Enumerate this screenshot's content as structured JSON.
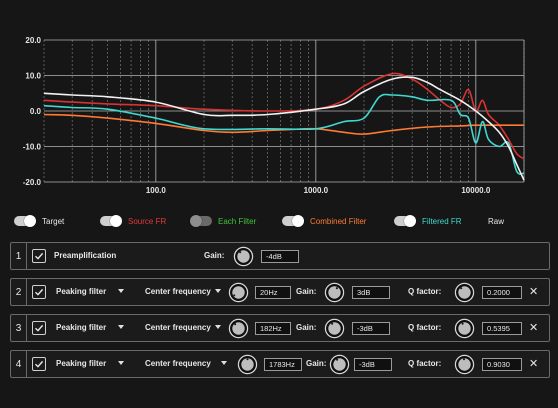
{
  "chart_data": {
    "type": "line",
    "xscale": "log",
    "xlim": [
      20,
      20000
    ],
    "ylim": [
      -20,
      20
    ],
    "grid": true,
    "y_ticks": [
      "20.0",
      "10.0",
      "0.0",
      "-10.0",
      "-20.0"
    ],
    "y_tick_values": [
      20,
      10,
      0,
      -10,
      -20
    ],
    "x_ticks": [
      "100.0",
      "1000.0",
      "10000.0"
    ],
    "x_tick_values": [
      100,
      1000,
      10000
    ],
    "series": [
      {
        "name": "Source FR",
        "color": "#d93232",
        "x": [
          20,
          30,
          50,
          100,
          200,
          500,
          1000,
          1500,
          2000,
          3000,
          4000,
          5000,
          6000,
          7000,
          8000,
          9000,
          10000,
          11000,
          12000,
          14000,
          16000,
          18000,
          20000
        ],
        "values": [
          3,
          2.5,
          2,
          1.5,
          0.5,
          0,
          0.5,
          3,
          7,
          10.5,
          9,
          6,
          3,
          1,
          2,
          6,
          0,
          3,
          -1,
          -4,
          -8,
          -12,
          -13.5
        ]
      },
      {
        "name": "Combined Filter",
        "color": "#ff7a33",
        "x": [
          20,
          30,
          50,
          100,
          200,
          300,
          500,
          700,
          1000,
          1500,
          2000,
          3000,
          5000,
          8000,
          10000,
          15000,
          20000
        ],
        "values": [
          -1,
          -1.2,
          -2,
          -3.5,
          -5.5,
          -6,
          -5.5,
          -5.2,
          -5,
          -6,
          -6.5,
          -5.5,
          -4.5,
          -4.2,
          -4,
          -4,
          -4
        ]
      },
      {
        "name": "Filtered FR",
        "color": "#3fd9d0",
        "x": [
          20,
          30,
          50,
          100,
          200,
          500,
          1000,
          1500,
          2000,
          2500,
          3000,
          4000,
          5000,
          7000,
          8000,
          9000,
          10000,
          11000,
          12000,
          14000,
          16000,
          18000,
          20000
        ],
        "values": [
          1.5,
          1,
          0.5,
          -2,
          -5,
          -5,
          -5,
          -3,
          -2,
          4,
          4.5,
          4,
          3,
          3,
          -1,
          -2,
          -9,
          -3,
          -8,
          -10,
          -9,
          -17,
          -17.5
        ]
      },
      {
        "name": "Target",
        "color": "#f2f2f2",
        "x": [
          20,
          30,
          50,
          100,
          200,
          300,
          500,
          1000,
          1500,
          2000,
          3000,
          4000,
          5000,
          6000,
          8000,
          10000,
          12000,
          14000,
          16000,
          18000,
          20000
        ],
        "values": [
          5,
          4.5,
          4,
          2.5,
          -1,
          -1.2,
          -1,
          0.5,
          2,
          5.5,
          9,
          9.5,
          8,
          6,
          3,
          0,
          -3,
          -6,
          -10,
          -15,
          -19.5
        ]
      }
    ]
  },
  "toggles": [
    {
      "label": "Target",
      "color": "#e8e8e8",
      "on": true
    },
    {
      "label": "Source FR",
      "color": "#e03b3b",
      "on": true
    },
    {
      "label": "Each Filter",
      "color": "#3ec43e",
      "on": false
    },
    {
      "label": "Combined Filter",
      "color": "#ff7a33",
      "on": true
    },
    {
      "label": "Filtered FR",
      "color": "#3fd9d0",
      "on": true
    },
    {
      "label": "Raw",
      "color": "#e8e8e8"
    }
  ],
  "preamp": {
    "num": "1",
    "label": "Preamplification",
    "gain_label": "Gain:",
    "gain_value": "-4dB"
  },
  "filters": [
    {
      "num": "2",
      "type": "Peaking filter",
      "freq_label": "Center frequency",
      "freq_value": "20Hz",
      "gain_label": "Gain:",
      "gain_value": "3dB",
      "q_label": "Q factor:",
      "q_value": "0.2000"
    },
    {
      "num": "3",
      "type": "Peaking filter",
      "freq_label": "Center frequency",
      "freq_value": "182Hz",
      "gain_label": "Gain:",
      "gain_value": "-3dB",
      "q_label": "Q factor:",
      "q_value": "0.5395"
    },
    {
      "num": "4",
      "type": "Peaking filter",
      "freq_label": "Center frequency",
      "freq_value": "1783Hz",
      "gain_label": "Gain:",
      "gain_value": "-3dB",
      "q_label": "Q factor:",
      "q_value": "0.9030"
    }
  ]
}
